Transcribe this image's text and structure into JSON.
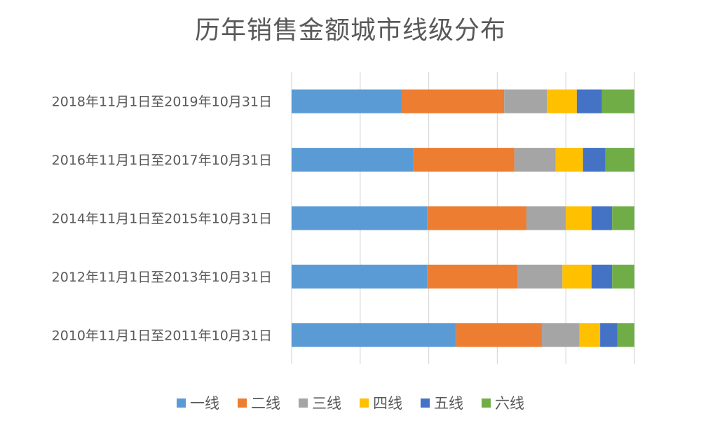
{
  "chart_data": {
    "type": "bar",
    "orientation": "horizontal",
    "stacked": "100%",
    "title": "历年销售金额城市线级分布",
    "categories": [
      "2018年11月1日至2019年10月31日",
      "2016年11月1日至2017年10月31日",
      "2014年11月1日至2015年10月31日",
      "2012年11月1日至2013年10月31日",
      "2010年11月1日至2011年10月31日"
    ],
    "series": [
      {
        "name": "一线",
        "color": "#5B9BD5",
        "values": [
          0.32,
          0.355,
          0.395,
          0.395,
          0.48
        ]
      },
      {
        "name": "二线",
        "color": "#ED7D31",
        "values": [
          0.3,
          0.295,
          0.29,
          0.265,
          0.25
        ]
      },
      {
        "name": "三线",
        "color": "#A5A5A5",
        "values": [
          0.125,
          0.12,
          0.115,
          0.13,
          0.11
        ]
      },
      {
        "name": "四线",
        "color": "#FFC000",
        "values": [
          0.087,
          0.08,
          0.075,
          0.085,
          0.06
        ]
      },
      {
        "name": "五线",
        "color": "#4472C4",
        "values": [
          0.073,
          0.065,
          0.06,
          0.06,
          0.05
        ]
      },
      {
        "name": "六线",
        "color": "#70AD47",
        "values": [
          0.095,
          0.085,
          0.065,
          0.065,
          0.05
        ]
      }
    ],
    "xlim": [
      0,
      1
    ],
    "grid": true,
    "legend_position": "bottom"
  }
}
